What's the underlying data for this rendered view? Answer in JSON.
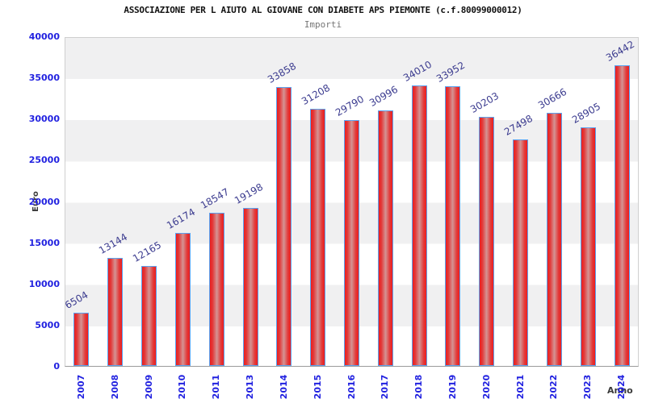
{
  "chart_data": {
    "type": "bar",
    "title": "ASSOCIAZIONE PER L AIUTO AL GIOVANE CON DIABETE APS PIEMONTE (c.f.80099000012)",
    "subtitle": "Importi",
    "xlabel": "Anno",
    "ylabel": "Euro",
    "categories": [
      "2007",
      "2008",
      "2009",
      "2010",
      "2011",
      "2013",
      "2014",
      "2015",
      "2016",
      "2017",
      "2018",
      "2019",
      "2020",
      "2021",
      "2022",
      "2023",
      "2024"
    ],
    "values": [
      6504,
      13144,
      12165,
      16174,
      18547,
      19198,
      33858,
      31208,
      29790,
      30996,
      34010,
      33952,
      30203,
      27498,
      30666,
      28905,
      36442
    ],
    "ylim": [
      0,
      40000
    ],
    "ytick_step": 5000,
    "ytick_labels": [
      "40000",
      "35000",
      "30000",
      "25000",
      "20000",
      "15000",
      "10000",
      "5000",
      "0"
    ],
    "grid": "alternating horizontal bands, gray/white per 5000",
    "legend": "none",
    "colors": {
      "bar_fill_edge": "#ec1d1d",
      "bar_fill_center": "#d49494",
      "bar_border": "#5aa2f0",
      "axis_tick_text": "#2222e0",
      "value_label_text": "#3b3b8f",
      "band_gray": "#f0f0f1",
      "band_white": "#ffffff",
      "title_text": "#111111",
      "subtitle_text": "#757575",
      "axis_title_text": "#3a3a3a"
    }
  }
}
